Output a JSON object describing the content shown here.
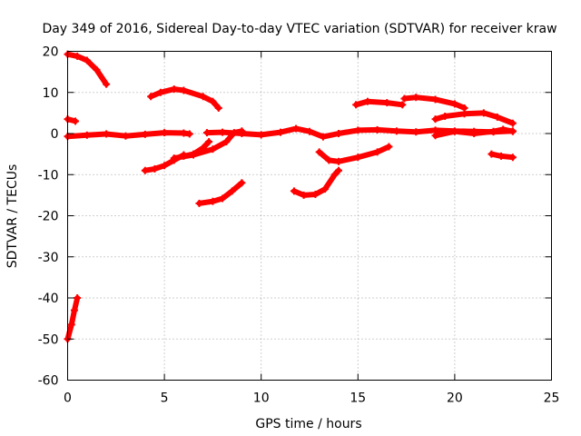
{
  "chart_data": {
    "type": "scatter",
    "title": "Day 349 of 2016, Sidereal Day-to-day VTEC variation (SDTVAR) for receiver kraw",
    "xlabel": "GPS time / hours",
    "ylabel": "SDTVAR / TECUs",
    "xlim": [
      0,
      25
    ],
    "ylim": [
      -60,
      20
    ],
    "xticks": [
      0,
      5,
      10,
      15,
      20,
      25
    ],
    "yticks": [
      -60,
      -50,
      -40,
      -30,
      -20,
      -10,
      0,
      10,
      20
    ],
    "grid": true,
    "colors": {
      "points": "#ff0000"
    },
    "series": [
      {
        "points": [
          [
            0.0,
            19.3
          ],
          [
            0.5,
            18.8
          ],
          [
            1.0,
            17.8
          ],
          [
            1.5,
            15.5
          ],
          [
            2.0,
            12.0
          ]
        ]
      },
      {
        "points": [
          [
            0.0,
            3.5
          ],
          [
            0.4,
            3.0
          ]
        ]
      },
      {
        "points": [
          [
            0.0,
            -0.7
          ],
          [
            1.0,
            -0.4
          ],
          [
            2.0,
            -0.1
          ],
          [
            3.0,
            -0.6
          ],
          [
            4.0,
            -0.2
          ],
          [
            5.0,
            0.2
          ],
          [
            6.0,
            0.1
          ],
          [
            6.3,
            -0.1
          ]
        ]
      },
      {
        "points": [
          [
            0.0,
            -50.0
          ],
          [
            0.2,
            -46.5
          ],
          [
            0.35,
            -43.0
          ],
          [
            0.5,
            -40.0
          ]
        ]
      },
      {
        "points": [
          [
            4.0,
            -9.0
          ],
          [
            4.5,
            -8.6
          ],
          [
            5.0,
            -7.8
          ],
          [
            5.5,
            -6.5
          ],
          [
            6.0,
            -5.2
          ]
        ]
      },
      {
        "points": [
          [
            4.3,
            9.0
          ],
          [
            4.8,
            10.0
          ],
          [
            5.5,
            10.8
          ],
          [
            6.0,
            10.5
          ],
          [
            7.0,
            9.0
          ],
          [
            7.5,
            7.8
          ],
          [
            7.8,
            6.2
          ]
        ]
      },
      {
        "points": [
          [
            5.5,
            -6.0
          ],
          [
            6.5,
            -5.2
          ],
          [
            7.5,
            -3.8
          ],
          [
            8.2,
            -2.0
          ],
          [
            8.6,
            0.2
          ],
          [
            9.0,
            0.6
          ]
        ]
      },
      {
        "points": [
          [
            6.0,
            -5.5
          ],
          [
            6.5,
            -5.0
          ],
          [
            7.0,
            -3.5
          ],
          [
            7.3,
            -2.0
          ]
        ]
      },
      {
        "points": [
          [
            7.2,
            0.2
          ],
          [
            8.0,
            0.3
          ],
          [
            9.0,
            0.0
          ],
          [
            10.0,
            -0.3
          ],
          [
            11.0,
            0.3
          ],
          [
            11.8,
            1.2
          ],
          [
            12.5,
            0.5
          ],
          [
            13.2,
            -0.8
          ],
          [
            14.0,
            0.0
          ],
          [
            15.0,
            0.8
          ],
          [
            16.0,
            0.9
          ],
          [
            17.0,
            0.6
          ],
          [
            18.0,
            0.4
          ],
          [
            19.0,
            0.8
          ],
          [
            20.0,
            0.6
          ],
          [
            21.0,
            0.5
          ],
          [
            22.0,
            0.4
          ],
          [
            23.0,
            0.6
          ]
        ]
      },
      {
        "points": [
          [
            6.8,
            -17.0
          ],
          [
            7.5,
            -16.5
          ],
          [
            8.0,
            -15.8
          ],
          [
            8.5,
            -14.0
          ],
          [
            9.0,
            -12.0
          ]
        ]
      },
      {
        "points": [
          [
            11.7,
            -14.0
          ],
          [
            12.2,
            -15.0
          ],
          [
            12.8,
            -14.8
          ],
          [
            13.3,
            -13.5
          ],
          [
            13.8,
            -10.0
          ],
          [
            14.0,
            -9.0
          ]
        ]
      },
      {
        "points": [
          [
            13.0,
            -4.5
          ],
          [
            13.5,
            -6.5
          ],
          [
            14.0,
            -6.8
          ],
          [
            15.0,
            -5.8
          ],
          [
            16.0,
            -4.5
          ],
          [
            16.6,
            -3.2
          ]
        ]
      },
      {
        "points": [
          [
            14.9,
            7.0
          ],
          [
            15.5,
            7.8
          ],
          [
            16.5,
            7.5
          ],
          [
            17.3,
            7.0
          ]
        ]
      },
      {
        "points": [
          [
            17.4,
            8.5
          ],
          [
            18.0,
            8.8
          ],
          [
            19.0,
            8.3
          ],
          [
            20.0,
            7.2
          ],
          [
            20.5,
            6.2
          ]
        ]
      },
      {
        "points": [
          [
            19.0,
            3.5
          ],
          [
            19.5,
            4.2
          ],
          [
            20.5,
            4.8
          ],
          [
            21.5,
            5.0
          ],
          [
            22.2,
            4.0
          ],
          [
            23.0,
            2.5
          ]
        ]
      },
      {
        "points": [
          [
            19.0,
            -0.5
          ],
          [
            20.0,
            0.5
          ],
          [
            21.0,
            0.0
          ],
          [
            22.0,
            0.5
          ],
          [
            22.5,
            1.0
          ],
          [
            23.0,
            0.5
          ]
        ]
      },
      {
        "points": [
          [
            21.9,
            -5.0
          ],
          [
            22.4,
            -5.5
          ],
          [
            23.0,
            -5.8
          ]
        ]
      }
    ]
  }
}
